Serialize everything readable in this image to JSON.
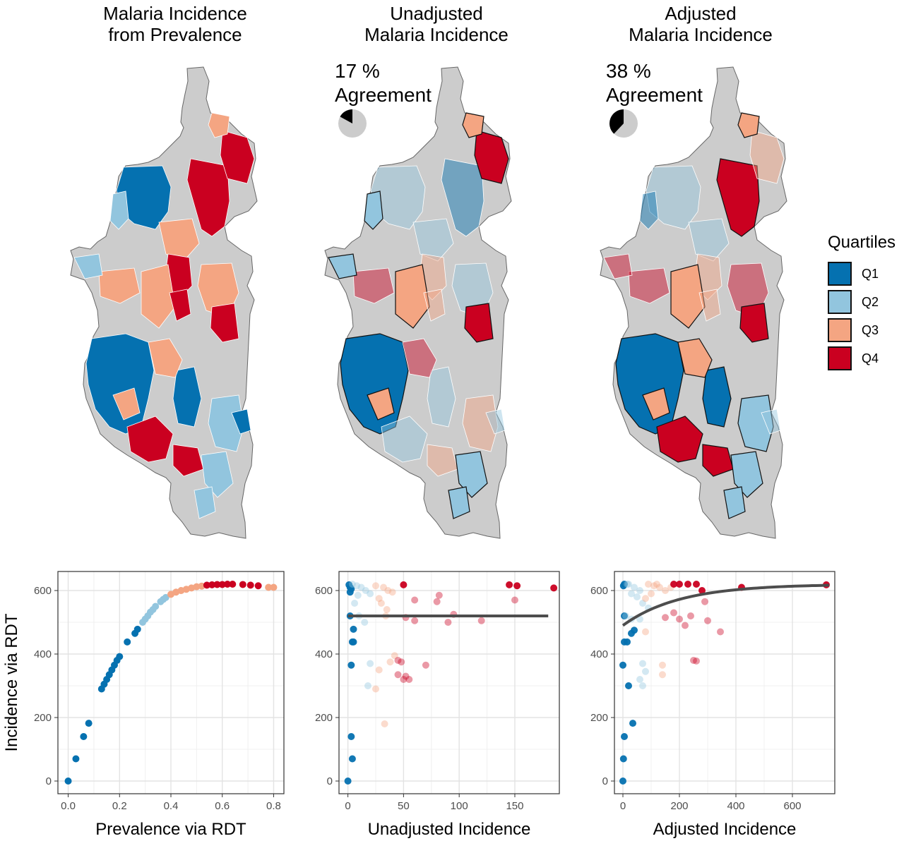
{
  "colors": {
    "Q1": "#0571b0",
    "Q2": "#92c5de",
    "Q3": "#f4a582",
    "Q4": "#ca0020",
    "na": "#cccccc",
    "fit": "#4d4d4d"
  },
  "maps": [
    {
      "title1": "Malaria Incidence",
      "title2": "from Prevalence",
      "pct": "",
      "agree": ""
    },
    {
      "title1": "Unadjusted",
      "title2": "Malaria Incidence",
      "pct": "17 %",
      "agree": "Agreement",
      "agreement_fraction": 0.17
    },
    {
      "title1": "Adjusted",
      "title2": "Malaria Incidence",
      "pct": "38 %",
      "agree": "Agreement",
      "agreement_fraction": 0.38
    }
  ],
  "legend": {
    "title": "Quartiles",
    "items": [
      "Q1",
      "Q2",
      "Q3",
      "Q4"
    ]
  },
  "chart_data": [
    {
      "type": "scatter",
      "xlabel": "Prevalence via RDT",
      "ylabel": "Incidence via RDT",
      "xlim": [
        -0.04,
        0.84
      ],
      "ylim": [
        -40,
        660
      ],
      "xticks": [
        0.0,
        0.2,
        0.4,
        0.6,
        0.8
      ],
      "xticklabels": [
        "0.0",
        "0.2",
        "0.4",
        "0.6",
        "0.8"
      ],
      "yticks": [
        0,
        200,
        400,
        600
      ],
      "yticklabels": [
        "0",
        "200",
        "400",
        "600"
      ],
      "grid": true,
      "fit": null,
      "points": [
        [
          0.0,
          0,
          "Q1"
        ],
        [
          0.03,
          70,
          "Q1"
        ],
        [
          0.06,
          140,
          "Q1"
        ],
        [
          0.08,
          182,
          "Q1"
        ],
        [
          0.13,
          290,
          "Q1"
        ],
        [
          0.14,
          305,
          "Q1"
        ],
        [
          0.15,
          320,
          "Q1"
        ],
        [
          0.16,
          335,
          "Q1"
        ],
        [
          0.17,
          350,
          "Q1"
        ],
        [
          0.18,
          365,
          "Q1"
        ],
        [
          0.19,
          380,
          "Q1"
        ],
        [
          0.2,
          392,
          "Q1"
        ],
        [
          0.23,
          438,
          "Q1"
        ],
        [
          0.26,
          465,
          "Q1"
        ],
        [
          0.27,
          478,
          "Q1"
        ],
        [
          0.29,
          500,
          "Q2"
        ],
        [
          0.3,
          510,
          "Q2"
        ],
        [
          0.31,
          520,
          "Q2"
        ],
        [
          0.32,
          532,
          "Q2"
        ],
        [
          0.33,
          540,
          "Q2"
        ],
        [
          0.34,
          550,
          "Q2"
        ],
        [
          0.36,
          565,
          "Q2"
        ],
        [
          0.37,
          572,
          "Q2"
        ],
        [
          0.38,
          578,
          "Q2"
        ],
        [
          0.4,
          588,
          "Q3"
        ],
        [
          0.42,
          595,
          "Q3"
        ],
        [
          0.44,
          600,
          "Q3"
        ],
        [
          0.46,
          604,
          "Q3"
        ],
        [
          0.48,
          608,
          "Q3"
        ],
        [
          0.5,
          612,
          "Q3"
        ],
        [
          0.52,
          614,
          "Q3"
        ],
        [
          0.54,
          617,
          "Q4"
        ],
        [
          0.56,
          618,
          "Q4"
        ],
        [
          0.58,
          619,
          "Q4"
        ],
        [
          0.6,
          619,
          "Q4"
        ],
        [
          0.62,
          620,
          "Q4"
        ],
        [
          0.64,
          620,
          "Q4"
        ],
        [
          0.68,
          619,
          "Q4"
        ],
        [
          0.71,
          617,
          "Q4"
        ],
        [
          0.74,
          615,
          "Q4"
        ],
        [
          0.78,
          610,
          "Q3"
        ],
        [
          0.8,
          610,
          "Q3"
        ]
      ]
    },
    {
      "type": "scatter",
      "xlabel": "Unadjusted Incidence",
      "ylabel": "",
      "xlim": [
        -8,
        190
      ],
      "ylim": [
        -40,
        660
      ],
      "xticks": [
        0,
        50,
        100,
        150
      ],
      "xticklabels": [
        "0",
        "50",
        "100",
        "150"
      ],
      "yticks": [
        0,
        200,
        400,
        600
      ],
      "yticklabels": [
        "0",
        "200",
        "400",
        "600"
      ],
      "grid": true,
      "fit": {
        "type": "flat",
        "y": 520,
        "x0": 0,
        "x1": 180
      },
      "points": [
        [
          0,
          0,
          "Q1"
        ],
        [
          4,
          70,
          "Q1"
        ],
        [
          3,
          140,
          "Q1"
        ],
        [
          3,
          365,
          "Q1"
        ],
        [
          4,
          438,
          "Q1"
        ],
        [
          5,
          438,
          "Q1"
        ],
        [
          5,
          478,
          "Q1"
        ],
        [
          2,
          520,
          "Q1"
        ],
        [
          1,
          618,
          "Q1"
        ],
        [
          2,
          610,
          "Q1"
        ],
        [
          3,
          605,
          "Q1"
        ],
        [
          2,
          595,
          "Q1"
        ],
        [
          8,
          615,
          "Q2"
        ],
        [
          12,
          610,
          "Q2"
        ],
        [
          16,
          600,
          "Q2"
        ],
        [
          20,
          590,
          "Q2"
        ],
        [
          6,
          560,
          "Q2"
        ],
        [
          10,
          520,
          "Q2"
        ],
        [
          15,
          500,
          "Q2"
        ],
        [
          18,
          300,
          "Q2"
        ],
        [
          20,
          370,
          "Q2"
        ],
        [
          4,
          620,
          "Q2"
        ],
        [
          9,
          585,
          "Q2"
        ],
        [
          25,
          615,
          "Q3"
        ],
        [
          32,
          610,
          "Q3"
        ],
        [
          36,
          600,
          "Q3"
        ],
        [
          40,
          595,
          "Q3"
        ],
        [
          28,
          575,
          "Q3"
        ],
        [
          30,
          560,
          "Q3"
        ],
        [
          35,
          540,
          "Q3"
        ],
        [
          34,
          520,
          "Q3"
        ],
        [
          33,
          180,
          "Q3"
        ],
        [
          25,
          290,
          "Q3"
        ],
        [
          28,
          350,
          "Q3"
        ],
        [
          38,
          375,
          "Q3"
        ],
        [
          42,
          395,
          "Q3"
        ],
        [
          50,
          618,
          "Q4"
        ],
        [
          145,
          618,
          "Q4"
        ],
        [
          152,
          615,
          "Q4"
        ],
        [
          185,
          608,
          "Q4"
        ],
        [
          150,
          570,
          "Q4"
        ],
        [
          60,
          570,
          "Q4"
        ],
        [
          80,
          565,
          "Q4"
        ],
        [
          82,
          585,
          "Q4"
        ],
        [
          95,
          525,
          "Q4"
        ],
        [
          120,
          505,
          "Q4"
        ],
        [
          60,
          505,
          "Q4"
        ],
        [
          90,
          500,
          "Q4"
        ],
        [
          52,
          515,
          "Q4"
        ],
        [
          70,
          365,
          "Q4"
        ],
        [
          45,
          380,
          "Q4"
        ],
        [
          48,
          375,
          "Q4"
        ],
        [
          45,
          335,
          "Q4"
        ],
        [
          50,
          320,
          "Q4"
        ],
        [
          55,
          320,
          "Q4"
        ],
        [
          52,
          330,
          "Q4"
        ]
      ]
    },
    {
      "type": "scatter",
      "xlabel": "Adjusted Incidence",
      "ylabel": "",
      "xlim": [
        -30,
        750
      ],
      "ylim": [
        -40,
        660
      ],
      "xticks": [
        0,
        200,
        400,
        600
      ],
      "xticklabels": [
        "0",
        "200",
        "400",
        "600"
      ],
      "yticks": [
        0,
        200,
        400,
        600
      ],
      "yticklabels": [
        "0",
        "200",
        "400",
        "600"
      ],
      "grid": true,
      "fit": {
        "type": "curve",
        "a": 620,
        "b": 130,
        "c": 0.005,
        "x0": 0,
        "x1": 730
      },
      "points": [
        [
          0,
          0,
          "Q1"
        ],
        [
          2,
          70,
          "Q1"
        ],
        [
          5,
          140,
          "Q1"
        ],
        [
          35,
          182,
          "Q1"
        ],
        [
          20,
          300,
          "Q1"
        ],
        [
          0,
          365,
          "Q1"
        ],
        [
          5,
          438,
          "Q1"
        ],
        [
          15,
          438,
          "Q1"
        ],
        [
          30,
          465,
          "Q1"
        ],
        [
          40,
          475,
          "Q1"
        ],
        [
          5,
          520,
          "Q1"
        ],
        [
          2,
          615,
          "Q1"
        ],
        [
          5,
          620,
          "Q1"
        ],
        [
          20,
          620,
          "Q2"
        ],
        [
          40,
          610,
          "Q2"
        ],
        [
          60,
          600,
          "Q2"
        ],
        [
          30,
          590,
          "Q2"
        ],
        [
          50,
          580,
          "Q2"
        ],
        [
          70,
          560,
          "Q2"
        ],
        [
          90,
          545,
          "Q2"
        ],
        [
          10,
          520,
          "Q2"
        ],
        [
          30,
          510,
          "Q2"
        ],
        [
          60,
          510,
          "Q2"
        ],
        [
          70,
          370,
          "Q2"
        ],
        [
          80,
          345,
          "Q2"
        ],
        [
          60,
          320,
          "Q2"
        ],
        [
          70,
          300,
          "Q2"
        ],
        [
          15,
          620,
          "Q2"
        ],
        [
          90,
          620,
          "Q3"
        ],
        [
          110,
          615,
          "Q3"
        ],
        [
          130,
          610,
          "Q3"
        ],
        [
          100,
          590,
          "Q3"
        ],
        [
          80,
          575,
          "Q3"
        ],
        [
          150,
          600,
          "Q3"
        ],
        [
          120,
          620,
          "Q3"
        ],
        [
          140,
          365,
          "Q3"
        ],
        [
          140,
          335,
          "Q3"
        ],
        [
          80,
          470,
          "Q3"
        ],
        [
          170,
          610,
          "Q3"
        ],
        [
          180,
          620,
          "Q4"
        ],
        [
          200,
          620,
          "Q4"
        ],
        [
          230,
          620,
          "Q4"
        ],
        [
          260,
          620,
          "Q4"
        ],
        [
          720,
          618,
          "Q4"
        ],
        [
          420,
          610,
          "Q4"
        ],
        [
          290,
          565,
          "Q4"
        ],
        [
          240,
          520,
          "Q4"
        ],
        [
          300,
          505,
          "Q4"
        ],
        [
          345,
          470,
          "Q4"
        ],
        [
          200,
          510,
          "Q4"
        ],
        [
          220,
          490,
          "Q4"
        ],
        [
          150,
          515,
          "Q4"
        ],
        [
          250,
          380,
          "Q4"
        ],
        [
          260,
          378,
          "Q4"
        ],
        [
          180,
          530,
          "Q4"
        ],
        [
          280,
          600,
          "Q4"
        ]
      ]
    }
  ]
}
